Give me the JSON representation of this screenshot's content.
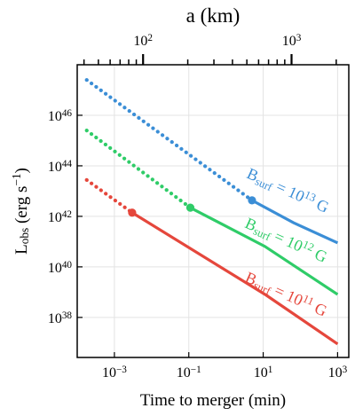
{
  "chart_data": {
    "type": "line",
    "x_label": "Time to merger (min)",
    "y_label": "L_{obs} (erg s^{-1})",
    "x2_label": "a (km)",
    "xscale": "log",
    "yscale": "log",
    "grid": true,
    "xlim": [
      0.0001,
      2000
    ],
    "ylim": [
      2.6e+36,
      1e+48
    ],
    "x2lim": [
      36,
      2430
    ],
    "xticks": [
      {
        "value": 0.001,
        "label": "10^{-3}"
      },
      {
        "value": 0.1,
        "label": "10^{-1}"
      },
      {
        "value": 10,
        "label": "10^{1}"
      },
      {
        "value": 1000,
        "label": "10^{3}"
      }
    ],
    "yticks": [
      {
        "value": 1e+38,
        "label": "10^{38}"
      },
      {
        "value": 1e+40,
        "label": "10^{40}"
      },
      {
        "value": 1e+42,
        "label": "10^{42}"
      },
      {
        "value": 1e+44,
        "label": "10^{44}"
      },
      {
        "value": 1e+46,
        "label": "10^{46}"
      }
    ],
    "x2ticks": [
      {
        "value": 100,
        "label": "10^{2}"
      },
      {
        "value": 1000,
        "label": "10^{3}"
      }
    ],
    "series": [
      {
        "name": "B_{surf} = 10^{13} G",
        "color": "#3b8ed6",
        "pieces": [
          {
            "style": "dotted",
            "x": [
              0.00018,
              5
            ],
            "values": [
              2.5e+47,
              4.3e+42
            ]
          },
          {
            "style": "solid",
            "x": [
              5,
              65,
              1000
            ],
            "values": [
              4.3e+42,
              5.6e+41,
              8.9e+40
            ]
          }
        ]
      },
      {
        "name": "B_{surf} = 10^{12} G",
        "color": "#2fcc68",
        "pieces": [
          {
            "style": "dotted",
            "x": [
              0.00018,
              0.11
            ],
            "values": [
              2.5e+45,
              2.2e+42
            ]
          },
          {
            "style": "solid",
            "x": [
              0.11,
              11,
              1000
            ],
            "values": [
              2.2e+42,
              6.5e+40,
              8.1e+38
            ]
          }
        ]
      },
      {
        "name": "B_{surf} = 10^{11} G",
        "color": "#e5473c",
        "pieces": [
          {
            "style": "dotted",
            "x": [
              0.00018,
              0.003
            ],
            "values": [
              2.75e+43,
              1.4e+42
            ]
          },
          {
            "style": "solid",
            "x": [
              0.003,
              12,
              1000
            ],
            "values": [
              1.4e+42,
              7.6e+38,
              8.9e+36
            ]
          }
        ]
      }
    ]
  }
}
